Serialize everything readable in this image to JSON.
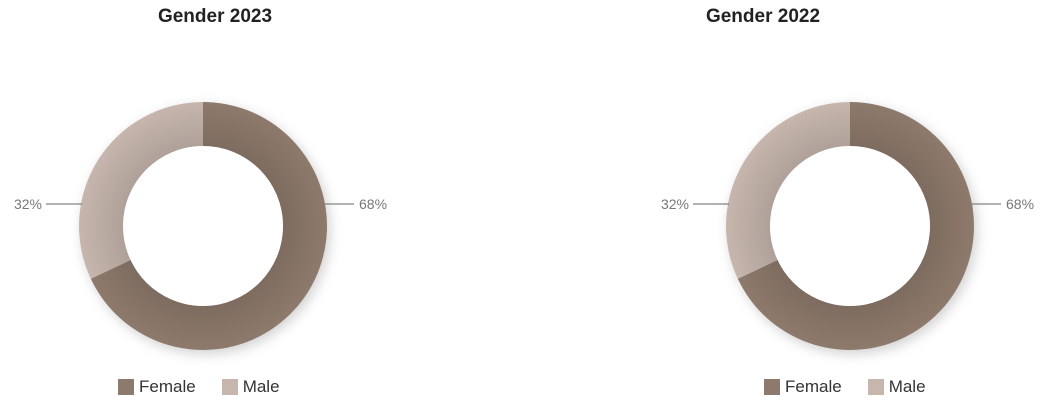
{
  "colors": {
    "female": "#8e7a6c",
    "male": "#c6b6ad"
  },
  "chart_data": [
    {
      "type": "pie",
      "title": "Gender 2023",
      "categories": [
        "Female",
        "Male"
      ],
      "values": [
        68,
        32
      ],
      "labels": [
        "68%",
        "32%"
      ],
      "donut": true,
      "legend_position": "bottom"
    },
    {
      "type": "pie",
      "title": "Gender 2022",
      "categories": [
        "Female",
        "Male"
      ],
      "values": [
        68,
        32
      ],
      "labels": [
        "68%",
        "32%"
      ],
      "donut": true,
      "legend_position": "bottom"
    }
  ]
}
